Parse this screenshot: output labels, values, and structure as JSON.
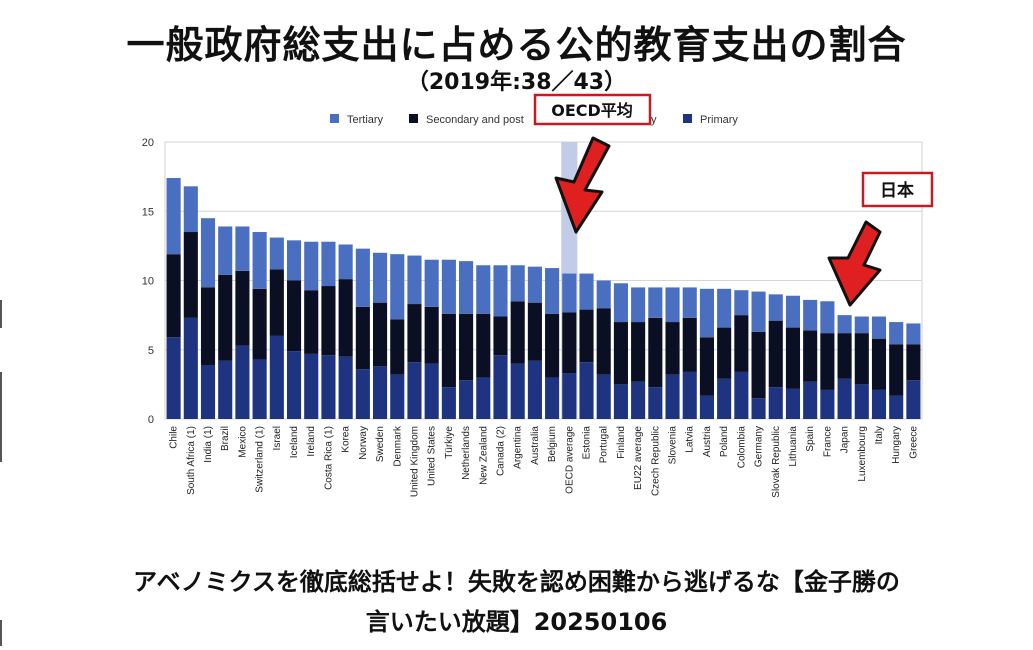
{
  "title": "一般政府総支出に占める公的教育支出の割合",
  "subtitle": "（2019年:38／43）",
  "caption_line1": "アベノミクスを徹底総括せよ！失敗を認め困難から逃げるな【金子勝の",
  "caption_line2": "言いたい放題】20250106",
  "callouts": {
    "oecd": "OECD平均",
    "japan": "日本"
  },
  "colors": {
    "tertiary": "#4a6fc0",
    "secondary": "#0b0f24",
    "primary": "#1f3480",
    "highlight": "#c3cce6",
    "callout_border": "#c61b23",
    "arrow": "#e02020"
  },
  "chart_data": {
    "type": "bar",
    "stacked": true,
    "ylim": [
      0,
      20
    ],
    "yticks": [
      0,
      5,
      10,
      15,
      20
    ],
    "legend": [
      "Tertiary",
      "Secondary and post-secondary non-tertiary",
      "Primary"
    ],
    "legend_visible": [
      "Tertiary",
      "Secondary and post",
      "y",
      "Primary"
    ],
    "legend_position": "top",
    "highlight_category": "OECD average",
    "categories": [
      "Chile",
      "South Africa (1)",
      "India (1)",
      "Brazil",
      "Mexico",
      "Switzerland (1)",
      "Israel",
      "Iceland",
      "Ireland",
      "Costa Rica (1)",
      "Korea",
      "Norway",
      "Sweden",
      "Denmark",
      "United Kingdom",
      "United States",
      "Türkiye",
      "Netherlands",
      "New Zealand",
      "Canada (2)",
      "Argentina",
      "Australia",
      "Belgium",
      "OECD average",
      "Estonia",
      "Portugal",
      "Finland",
      "EU22 average",
      "Czech Republic",
      "Slovenia",
      "Latvia",
      "Austria",
      "Poland",
      "Colombia",
      "Germany",
      "Slovak Republic",
      "Lithuania",
      "Spain",
      "France",
      "Japan",
      "Luxembourg",
      "Italy",
      "Hungary",
      "Greece"
    ],
    "series": [
      {
        "name": "Primary",
        "values": [
          5.9,
          7.3,
          3.9,
          4.2,
          5.3,
          4.3,
          6.0,
          4.9,
          4.7,
          4.6,
          4.5,
          3.6,
          3.8,
          3.2,
          4.1,
          4.0,
          2.3,
          2.8,
          3.0,
          4.6,
          4.0,
          4.2,
          3.0,
          3.3,
          4.1,
          3.2,
          2.5,
          2.7,
          2.3,
          3.2,
          3.4,
          1.7,
          2.9,
          3.4,
          1.5,
          2.3,
          2.2,
          2.7,
          2.1,
          2.9,
          2.5,
          2.1,
          1.7,
          2.8
        ]
      },
      {
        "name": "Secondary and post-secondary non-tertiary",
        "values": [
          6.0,
          6.2,
          5.6,
          6.2,
          5.4,
          5.1,
          4.8,
          5.1,
          4.6,
          5.0,
          5.6,
          4.5,
          4.6,
          4.0,
          4.2,
          4.1,
          5.3,
          4.8,
          4.6,
          2.8,
          4.5,
          4.2,
          4.6,
          4.4,
          3.8,
          4.8,
          4.5,
          4.3,
          5.0,
          3.8,
          3.9,
          4.2,
          3.7,
          4.1,
          4.8,
          4.8,
          4.4,
          3.7,
          4.1,
          3.3,
          3.7,
          3.7,
          3.7,
          2.6
        ]
      },
      {
        "name": "Tertiary",
        "values": [
          5.5,
          3.3,
          5.0,
          3.5,
          3.2,
          4.1,
          2.3,
          2.9,
          3.5,
          3.2,
          2.5,
          4.2,
          3.6,
          4.7,
          3.5,
          3.4,
          3.9,
          3.8,
          3.5,
          3.7,
          2.6,
          2.6,
          3.3,
          2.8,
          2.6,
          2.0,
          2.8,
          2.5,
          2.2,
          2.5,
          2.2,
          3.5,
          2.8,
          1.8,
          2.9,
          1.9,
          2.3,
          2.2,
          2.3,
          1.3,
          1.2,
          1.6,
          1.6,
          1.5
        ]
      }
    ]
  }
}
